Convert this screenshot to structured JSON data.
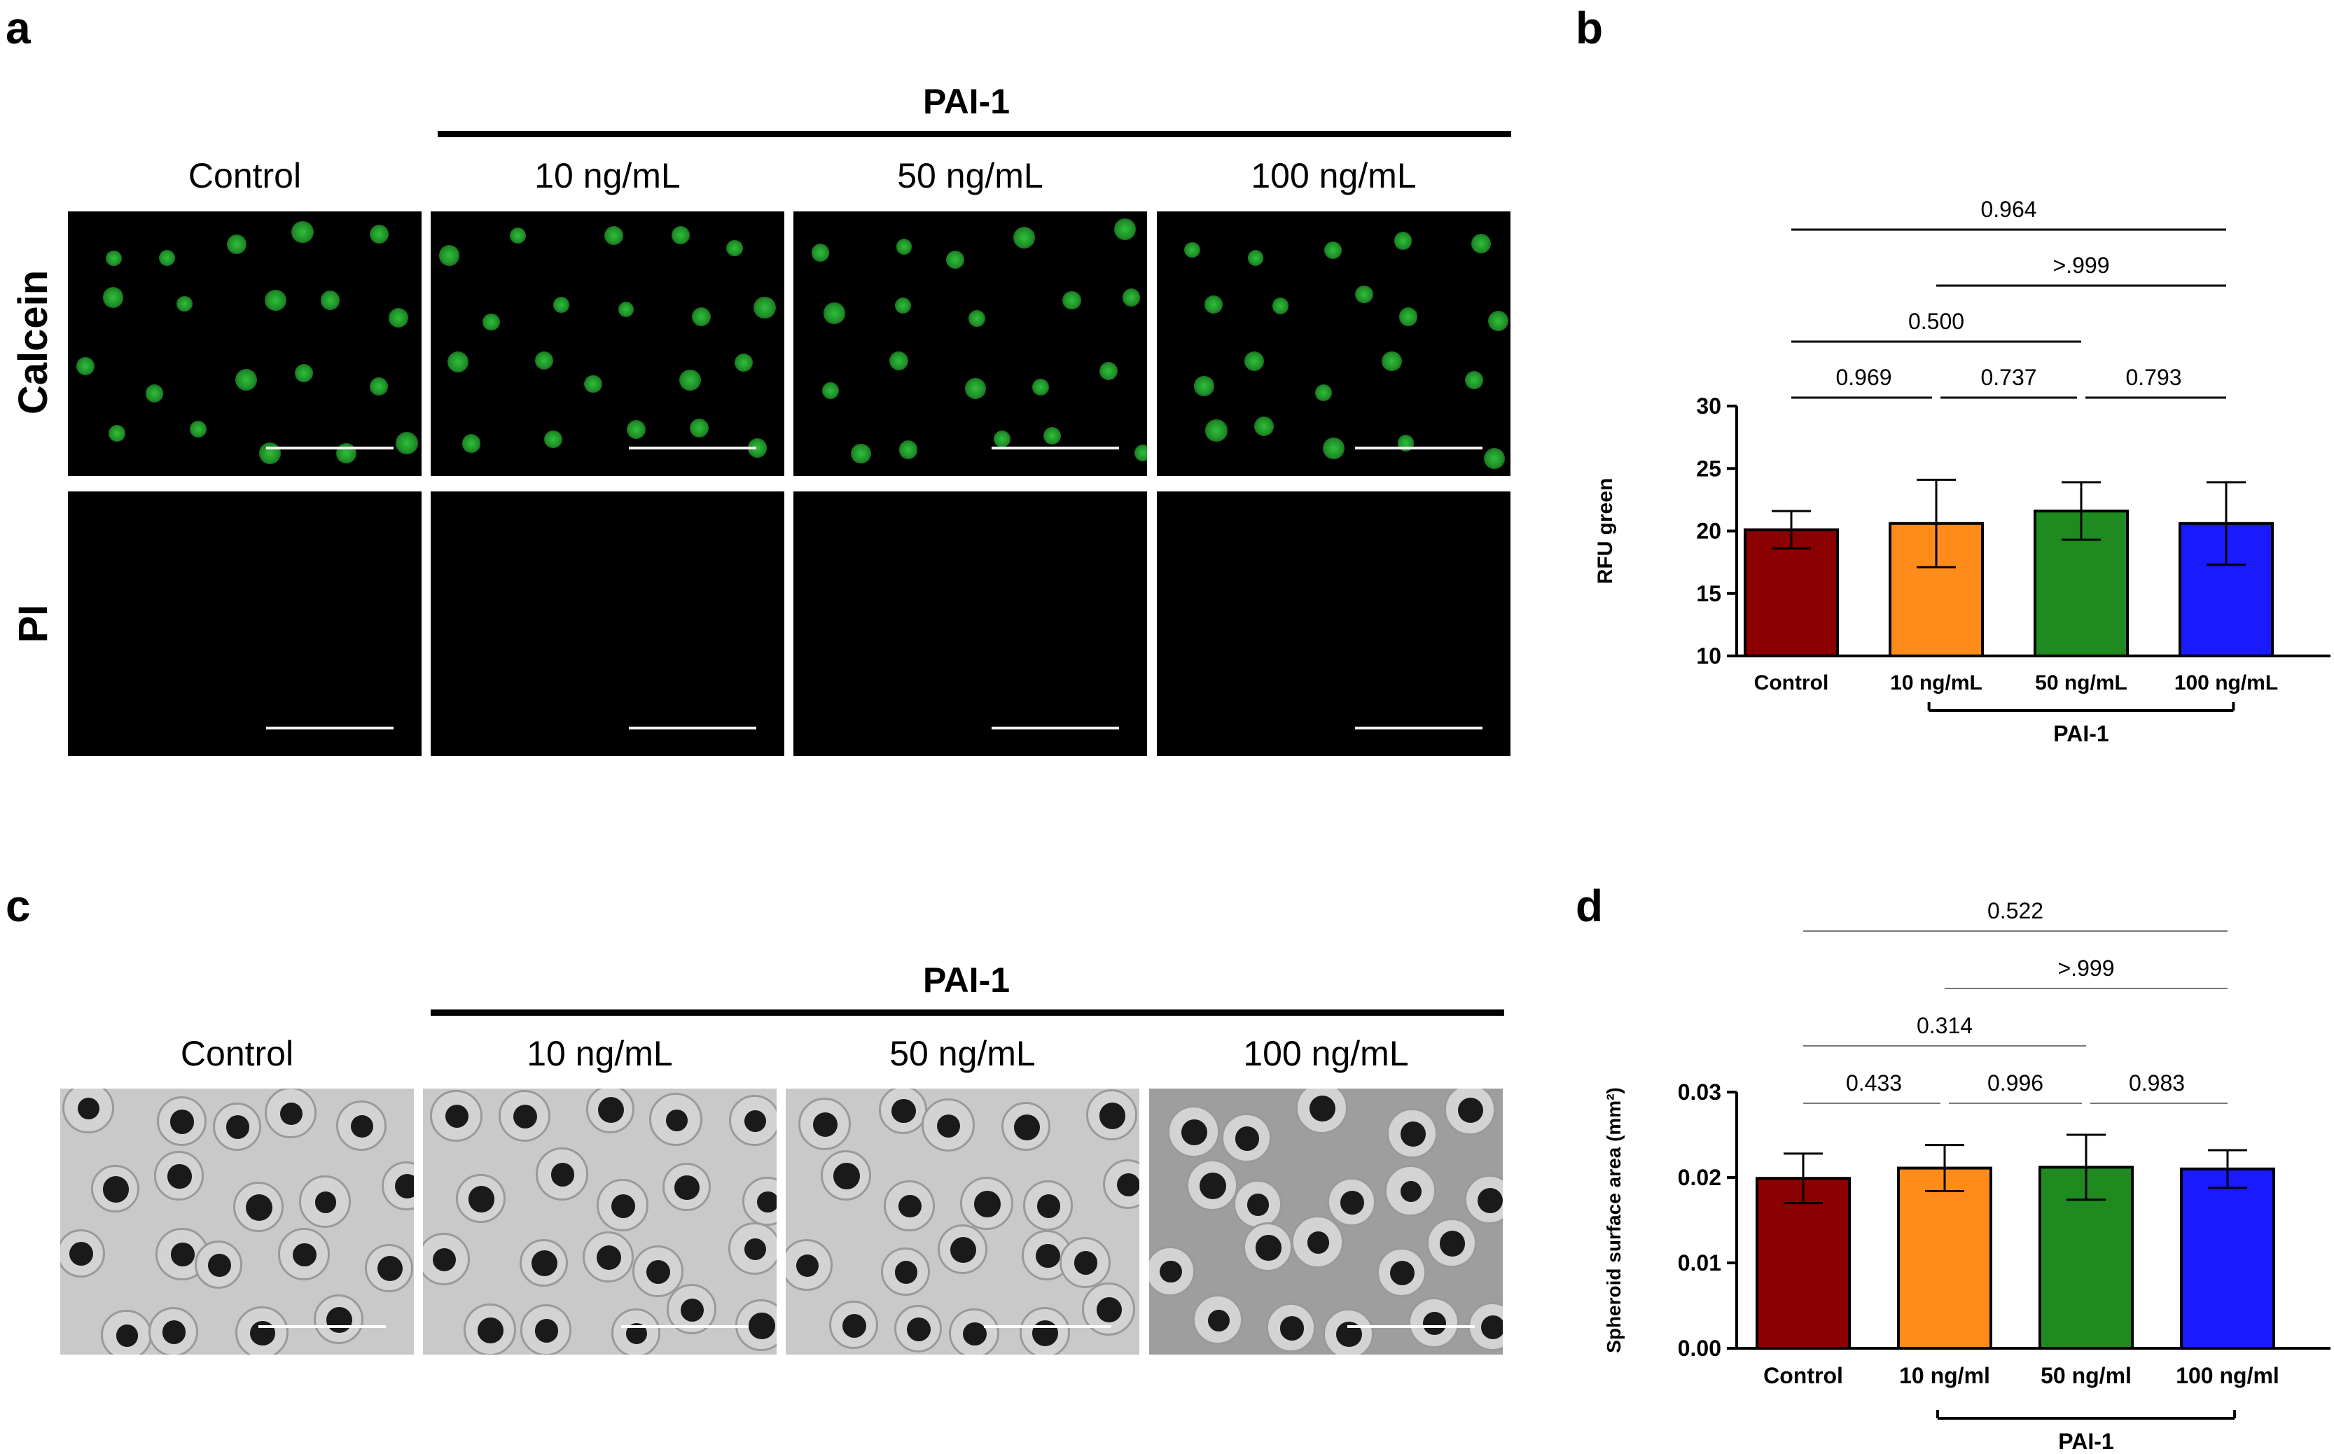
{
  "panel_labels": [
    "a",
    "b",
    "c",
    "d"
  ],
  "panel_a": {
    "group_header": "PAI-1",
    "columns": [
      "Control",
      "10 ng/mL",
      "50 ng/mL",
      "100 ng/mL"
    ],
    "rows": [
      "Calcein",
      "PI"
    ]
  },
  "panel_c": {
    "group_header": "PAI-1",
    "columns": [
      "Control",
      "10 ng/mL",
      "50 ng/mL",
      "100 ng/mL"
    ]
  },
  "chart_data": [
    {
      "type": "bar",
      "panel": "b",
      "categories": [
        "Control",
        "10 ng/mL",
        "50 ng/mL",
        "100 ng/mL"
      ],
      "values": [
        20.1,
        20.6,
        21.6,
        20.6
      ],
      "error": [
        1.5,
        3.5,
        2.3,
        3.3
      ],
      "colors": [
        "#8b0000",
        "#ff8c1a",
        "#1f8a1f",
        "#1a1aff"
      ],
      "ylabel": "RFU green",
      "ylim": [
        10,
        30
      ],
      "yticks": [
        "10",
        "15",
        "20",
        "25",
        "30"
      ],
      "group_label": "PAI-1",
      "comparisons": [
        {
          "from": 0,
          "to": 1,
          "label": "0.969"
        },
        {
          "from": 1,
          "to": 2,
          "label": "0.737"
        },
        {
          "from": 2,
          "to": 3,
          "label": "0.793"
        },
        {
          "from": 0,
          "to": 2,
          "label": "0.500"
        },
        {
          "from": 1,
          "to": 3,
          "label": ">.999"
        },
        {
          "from": 0,
          "to": 3,
          "label": "0.964"
        }
      ]
    },
    {
      "type": "bar",
      "panel": "d",
      "categories": [
        "Control",
        "10 ng/ml",
        "50 ng/ml",
        "100 ng/ml"
      ],
      "values": [
        0.0199,
        0.0211,
        0.0212,
        0.021
      ],
      "error": [
        0.0029,
        0.0027,
        0.0038,
        0.0022
      ],
      "colors": [
        "#8b0000",
        "#ff8c1a",
        "#1f8a1f",
        "#1a1aff"
      ],
      "ylabel": "Spheroid surface area (mm²)",
      "ylim": [
        0,
        0.03
      ],
      "yticks": [
        "0.00",
        "0.01",
        "0.02",
        "0.03"
      ],
      "group_label": "PAI-1",
      "comparisons": [
        {
          "from": 0,
          "to": 1,
          "label": "0.433"
        },
        {
          "from": 1,
          "to": 2,
          "label": "0.996"
        },
        {
          "from": 2,
          "to": 3,
          "label": "0.983"
        },
        {
          "from": 0,
          "to": 2,
          "label": "0.314"
        },
        {
          "from": 1,
          "to": 3,
          "label": ">.999"
        },
        {
          "from": 0,
          "to": 3,
          "label": "0.522"
        }
      ]
    }
  ]
}
